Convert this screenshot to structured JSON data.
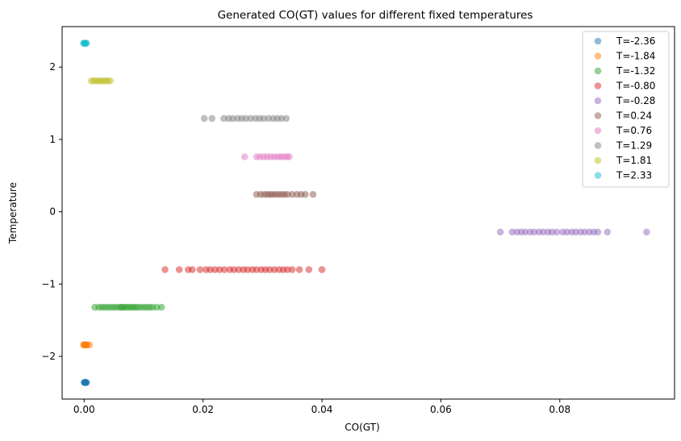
{
  "chart_data": {
    "type": "scatter",
    "title": "Generated CO(GT) values for different fixed temperatures",
    "xlabel": "CO(GT)",
    "ylabel": "Temperature",
    "xlim": [
      -0.0037,
      0.0993
    ],
    "ylim": [
      -2.59,
      2.56
    ],
    "xticks": [
      0.0,
      0.02,
      0.04,
      0.06,
      0.08
    ],
    "xtick_labels": [
      "0.00",
      "0.02",
      "0.04",
      "0.06",
      "0.08"
    ],
    "yticks": [
      -2,
      -1,
      0,
      1,
      2
    ],
    "ytick_labels": [
      "−2",
      "−1",
      "0",
      "1",
      "2"
    ],
    "grid": false,
    "legend_position": "top-right",
    "marker_alpha": 0.5,
    "series": [
      {
        "name": "T=-2.36",
        "color": "#1f77b4",
        "y": -2.36,
        "x": [
          0.0,
          0.0001,
          0.0001,
          0.0002,
          0.0002,
          0.0003,
          0.0003,
          0.0004
        ]
      },
      {
        "name": "T=-1.84",
        "color": "#ff7f0e",
        "y": -1.84,
        "x": [
          -0.0001,
          0.0,
          0.0001,
          0.0002,
          0.0002,
          0.0003,
          0.0004,
          0.0005,
          0.0009
        ]
      },
      {
        "name": "T=-1.32",
        "color": "#2ca02c",
        "y": -1.32,
        "x": [
          0.0018,
          0.0025,
          0.003,
          0.0035,
          0.004,
          0.0045,
          0.005,
          0.0055,
          0.006,
          0.0063,
          0.0066,
          0.007,
          0.0074,
          0.0078,
          0.0082,
          0.0086,
          0.009,
          0.0095,
          0.01,
          0.0105,
          0.011,
          0.0115,
          0.0122,
          0.013
        ]
      },
      {
        "name": "T=-0.80",
        "color": "#d62728",
        "y": -0.8,
        "x": [
          0.0136,
          0.016,
          0.0175,
          0.0182,
          0.0195,
          0.0205,
          0.0212,
          0.022,
          0.0228,
          0.0236,
          0.0245,
          0.0252,
          0.026,
          0.0268,
          0.0275,
          0.0283,
          0.029,
          0.0298,
          0.0305,
          0.0312,
          0.032,
          0.0328,
          0.0335,
          0.0342,
          0.035,
          0.0362,
          0.0378,
          0.04
        ]
      },
      {
        "name": "T=-0.28",
        "color": "#9467bd",
        "y": -0.28,
        "x": [
          0.07,
          0.072,
          0.0728,
          0.0735,
          0.0742,
          0.075,
          0.0757,
          0.0765,
          0.0772,
          0.078,
          0.0787,
          0.0795,
          0.0805,
          0.0812,
          0.082,
          0.0827,
          0.0835,
          0.0842,
          0.085,
          0.0857,
          0.0864,
          0.088,
          0.0946
        ]
      },
      {
        "name": "T=0.24",
        "color": "#8c564b",
        "y": 0.24,
        "x": [
          0.029,
          0.0297,
          0.0303,
          0.0308,
          0.0313,
          0.0317,
          0.0322,
          0.0327,
          0.0332,
          0.0337,
          0.0342,
          0.035,
          0.0358,
          0.0365,
          0.0372,
          0.0385
        ]
      },
      {
        "name": "T=0.76",
        "color": "#e377c2",
        "y": 0.76,
        "x": [
          0.027,
          0.029,
          0.0296,
          0.0302,
          0.0308,
          0.0314,
          0.032,
          0.0326,
          0.0331,
          0.0336,
          0.0341,
          0.0345
        ]
      },
      {
        "name": "T=1.29",
        "color": "#7f7f7f",
        "y": 1.29,
        "x": [
          0.0202,
          0.0215,
          0.0235,
          0.0243,
          0.025,
          0.0258,
          0.0265,
          0.0272,
          0.028,
          0.0288,
          0.0295,
          0.0302,
          0.031,
          0.0318,
          0.0325,
          0.0332,
          0.034
        ]
      },
      {
        "name": "T=1.81",
        "color": "#bcbd22",
        "y": 1.81,
        "x": [
          0.0012,
          0.0016,
          0.002,
          0.0024,
          0.0028,
          0.0032,
          0.0036,
          0.004,
          0.0044
        ]
      },
      {
        "name": "T=2.33",
        "color": "#17becf",
        "y": 2.33,
        "x": [
          -0.0001,
          0.0,
          0.0001,
          0.0002,
          0.0003,
          0.0004
        ]
      }
    ]
  }
}
